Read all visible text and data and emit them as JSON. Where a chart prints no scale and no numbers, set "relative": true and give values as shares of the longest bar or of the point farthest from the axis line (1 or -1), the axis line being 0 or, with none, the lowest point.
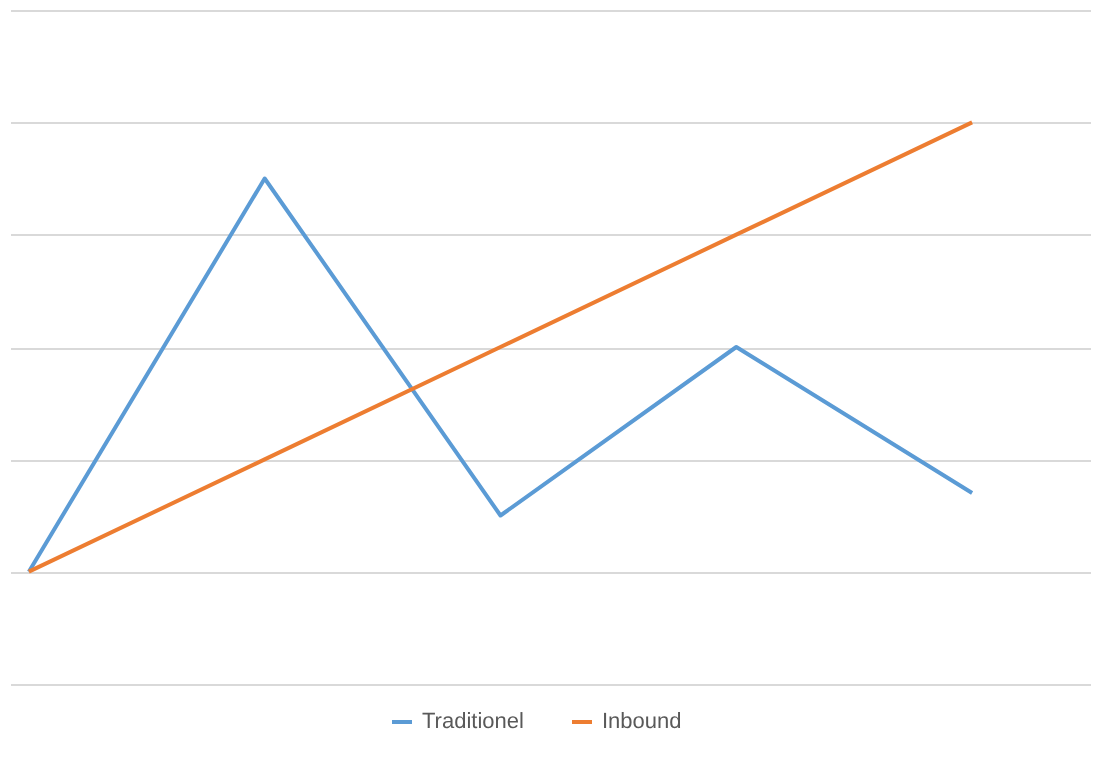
{
  "chart_data": {
    "type": "line",
    "relative": true,
    "categories": [
      null,
      null,
      null,
      null,
      null
    ],
    "series": [
      {
        "name": "Traditionel",
        "color": "#5b9bd5",
        "values": [
          0.2,
          0.9,
          0.3,
          0.6,
          0.34
        ]
      },
      {
        "name": "Inbound",
        "color": "#ed7d31",
        "values": [
          0.2,
          0.4,
          0.6,
          0.8,
          1.0
        ]
      }
    ],
    "grid": "y",
    "legend": "bottom",
    "marker": "none",
    "line_style": "solid"
  }
}
